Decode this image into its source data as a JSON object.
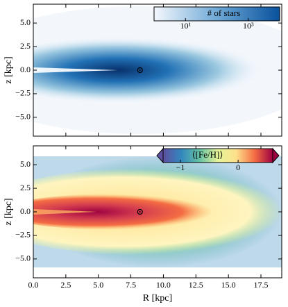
{
  "chart_data": [
    {
      "type": "heatmap",
      "ylabel": "z [kpc]",
      "xlim": [
        0,
        19.1
      ],
      "ylim": [
        -7,
        7
      ],
      "xticks": [
        0,
        2.5,
        5,
        7.5,
        10,
        12.5,
        15,
        17.5
      ],
      "yticks": [
        {
          "value": -5,
          "label": "−5.0"
        },
        {
          "value": -2.5,
          "label": "−2.5"
        },
        {
          "value": 0,
          "label": "0.0"
        },
        {
          "value": 2.5,
          "label": "2.5"
        },
        {
          "value": 5,
          "label": "5.0"
        }
      ],
      "marker": {
        "x": 8.2,
        "y": 0
      },
      "colorbar": {
        "label": "# of stars",
        "scale": "log",
        "lim": [
          1,
          10000
        ],
        "colors": [
          "#f4f8fd",
          "#6fa9d6",
          "#08519c"
        ],
        "ticks": [
          {
            "value": 10,
            "label": "10¹"
          },
          {
            "value": 1000,
            "label": "10³"
          }
        ]
      }
    },
    {
      "type": "heatmap",
      "xlabel": "R [kpc]",
      "ylabel": "z [kpc]",
      "xlim": [
        0,
        19.1
      ],
      "ylim": [
        -7,
        7
      ],
      "xticks": [
        {
          "value": 0,
          "label": "0.0"
        },
        2.5,
        {
          "value": 5,
          "label": "5.0"
        },
        7.5,
        {
          "value": 10,
          "label": "10.0"
        },
        12.5,
        {
          "value": 15,
          "label": "15.0"
        },
        17.5
      ],
      "yticks": [
        {
          "value": -5,
          "label": "−5.0"
        },
        {
          "value": -2.5,
          "label": "−2.5"
        },
        {
          "value": 0,
          "label": "0.0"
        },
        {
          "value": 2.5,
          "label": "2.5"
        },
        {
          "value": 5,
          "label": "5.0"
        }
      ],
      "marker": {
        "x": 8.2,
        "y": 0
      },
      "colorbar": {
        "label": "⟨[Fe/H]⟩",
        "scale": "linear",
        "lim": [
          -1.3,
          0.6
        ],
        "colors": [
          "#5e4fa2",
          "#3288bd",
          "#66c2a5",
          "#e6f598",
          "#fee08b",
          "#f46d43",
          "#9e0142"
        ],
        "ticks": [
          {
            "value": -1,
            "label": "−1"
          },
          0
        ]
      }
    }
  ]
}
